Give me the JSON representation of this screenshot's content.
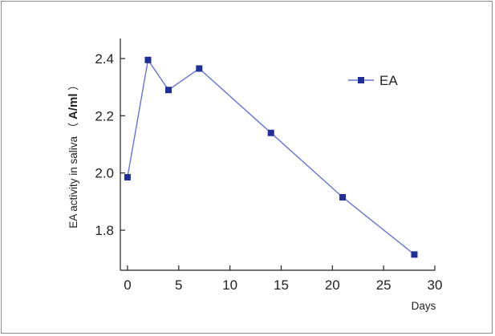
{
  "chart_data": {
    "type": "line",
    "x": [
      0,
      2,
      4,
      7,
      14,
      21,
      28
    ],
    "series": [
      {
        "name": "EA",
        "values": [
          1.985,
          2.395,
          2.29,
          2.365,
          2.14,
          1.915,
          1.715
        ]
      }
    ],
    "xlabel": "Days",
    "ylabel": {
      "text": "EA activity in saliva",
      "open_paren": "（",
      "unit": "A/ml",
      "close_paren": "）"
    },
    "xlim": [
      -0.7,
      30
    ],
    "ylim": [
      1.66,
      2.47
    ],
    "xticks": [
      0,
      5,
      10,
      15,
      20,
      25,
      30
    ],
    "xtick_labels": [
      "0",
      "5",
      "10",
      "15",
      "20",
      "25",
      "30"
    ],
    "yticks": [
      1.8,
      2.0,
      2.2,
      2.4
    ],
    "ytick_labels": [
      "1.8",
      "2.0",
      "2.2",
      "2.4"
    ],
    "legend": {
      "label": "EA",
      "position": "top-right"
    },
    "grid": false,
    "colors": {
      "series": "#6573d6",
      "marker": "#1f2f99",
      "axis": "#222222"
    }
  }
}
